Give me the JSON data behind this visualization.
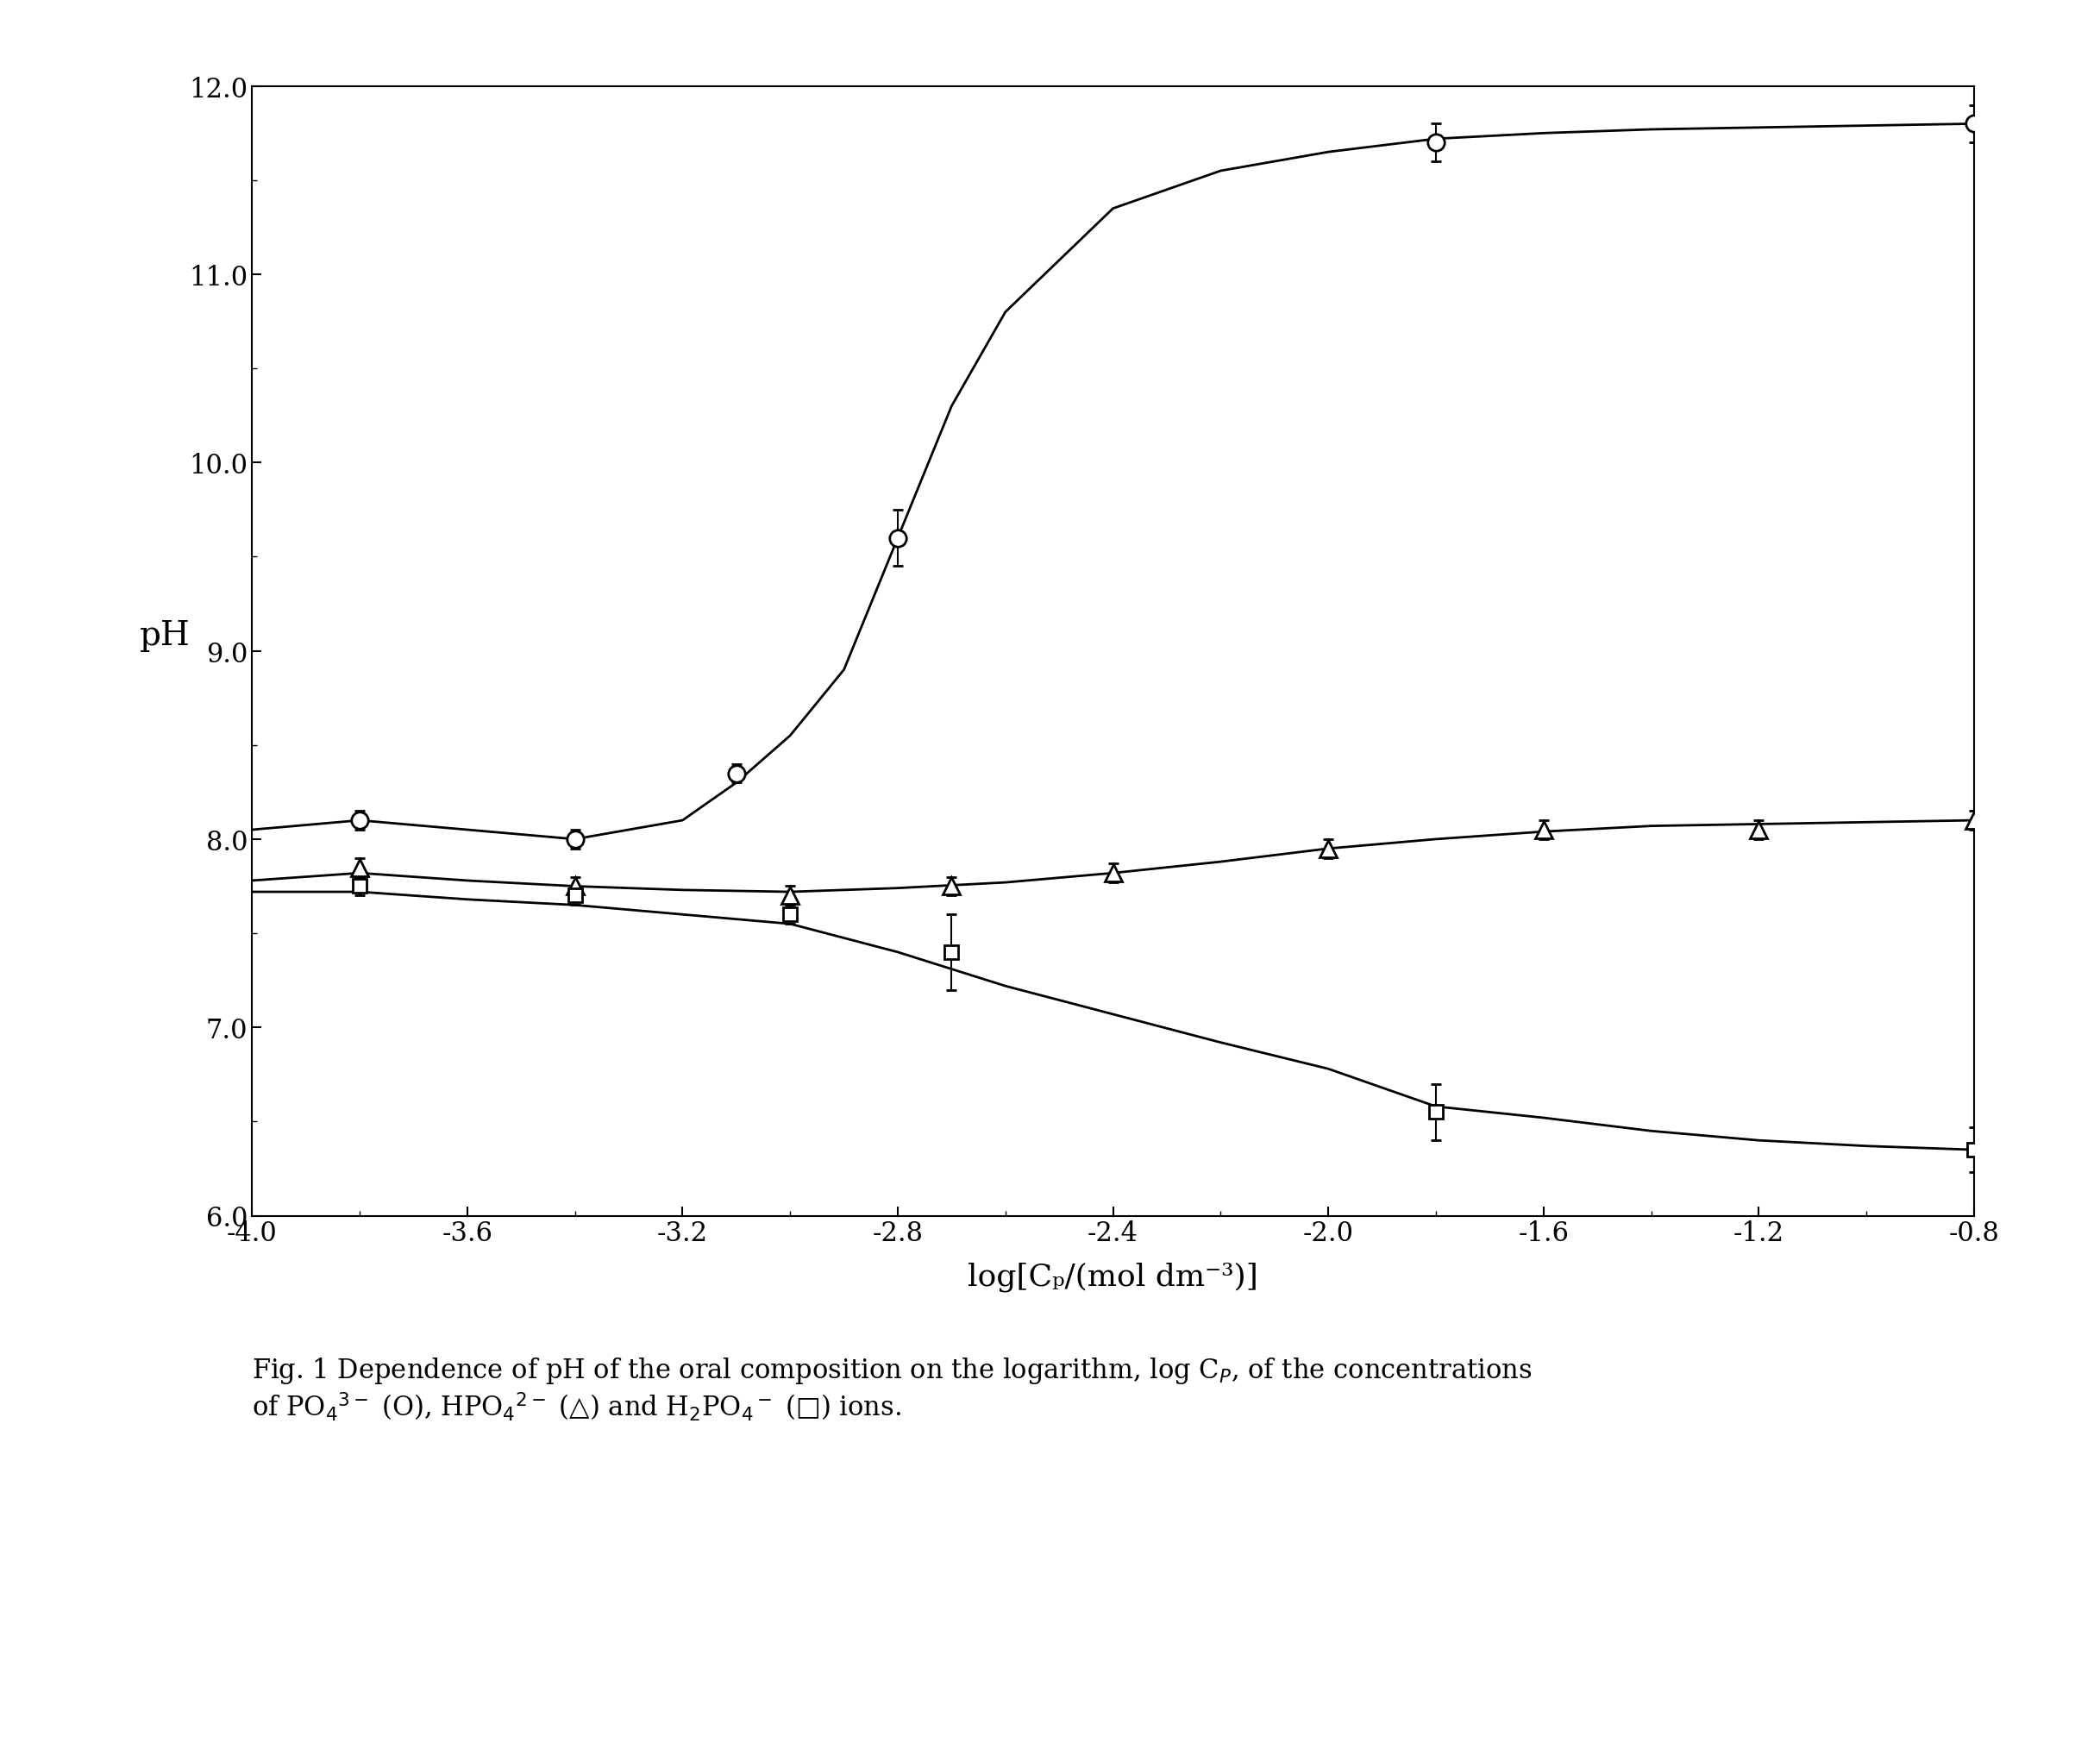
{
  "title": "Fig. 1 Dependence of pH of the oral composition on the logarithm, log C₁, of the concentrations\nof PO₄³⁻ (O), HPO₄²⁻ (△) and H₂PO₄⁻ (□) ions.",
  "xlabel": "log[Cₚ/(mol dm⁻³)]",
  "ylabel": "pH",
  "xlim": [
    -4.0,
    -0.8
  ],
  "ylim": [
    6.0,
    12.0
  ],
  "xticks": [
    -4.0,
    -3.6,
    -3.2,
    -2.8,
    -2.4,
    -2.0,
    -1.6,
    -1.2,
    -0.8
  ],
  "yticks": [
    6.0,
    7.0,
    8.0,
    9.0,
    10.0,
    11.0,
    12.0
  ],
  "PO4_x": [
    -3.8,
    -3.4,
    -3.1,
    -2.8,
    -1.8,
    -0.8
  ],
  "PO4_y": [
    8.1,
    8.0,
    8.35,
    9.6,
    11.7,
    11.8
  ],
  "PO4_yerr": [
    0.05,
    0.05,
    0.05,
    0.15,
    0.1,
    0.1
  ],
  "HPO4_x": [
    -3.8,
    -3.4,
    -3.0,
    -2.7,
    -2.4,
    -2.0,
    -1.6,
    -1.2,
    -0.8
  ],
  "HPO4_y": [
    7.85,
    7.75,
    7.7,
    7.75,
    7.82,
    7.95,
    8.05,
    8.05,
    8.1
  ],
  "HPO4_yerr": [
    0.05,
    0.05,
    0.05,
    0.05,
    0.05,
    0.05,
    0.05,
    0.05,
    0.05
  ],
  "H2PO4_x": [
    -3.8,
    -3.4,
    -3.0,
    -2.7,
    -1.8,
    -0.8
  ],
  "H2PO4_y": [
    7.75,
    7.7,
    7.6,
    7.4,
    6.55,
    6.35
  ],
  "H2PO4_yerr": [
    0.05,
    0.05,
    0.05,
    0.2,
    0.15,
    0.12
  ],
  "curve_PO4_x": [
    -4.0,
    -3.8,
    -3.6,
    -3.4,
    -3.2,
    -3.1,
    -3.0,
    -2.9,
    -2.8,
    -2.7,
    -2.6,
    -2.4,
    -2.2,
    -2.0,
    -1.8,
    -1.6,
    -1.4,
    -1.2,
    -1.0,
    -0.8
  ],
  "curve_PO4_y": [
    8.05,
    8.1,
    8.05,
    8.0,
    8.1,
    8.3,
    8.55,
    8.9,
    9.6,
    10.3,
    10.8,
    11.35,
    11.55,
    11.65,
    11.72,
    11.75,
    11.77,
    11.78,
    11.79,
    11.8
  ],
  "curve_HPO4_x": [
    -4.0,
    -3.8,
    -3.6,
    -3.4,
    -3.2,
    -3.0,
    -2.8,
    -2.6,
    -2.4,
    -2.2,
    -2.0,
    -1.8,
    -1.6,
    -1.4,
    -1.2,
    -1.0,
    -0.8
  ],
  "curve_HPO4_y": [
    7.78,
    7.82,
    7.78,
    7.75,
    7.73,
    7.72,
    7.74,
    7.77,
    7.82,
    7.88,
    7.95,
    8.0,
    8.04,
    8.07,
    8.08,
    8.09,
    8.1
  ],
  "curve_H2PO4_x": [
    -4.0,
    -3.8,
    -3.6,
    -3.4,
    -3.2,
    -3.0,
    -2.8,
    -2.6,
    -2.4,
    -2.2,
    -2.0,
    -1.8,
    -1.6,
    -1.4,
    -1.2,
    -1.0,
    -0.8
  ],
  "curve_H2PO4_y": [
    7.72,
    7.72,
    7.68,
    7.65,
    7.6,
    7.55,
    7.4,
    7.22,
    7.07,
    6.92,
    6.78,
    6.58,
    6.52,
    6.45,
    6.4,
    6.37,
    6.35
  ],
  "background_color": "#ffffff",
  "line_color": "#000000",
  "marker_color": "#000000"
}
